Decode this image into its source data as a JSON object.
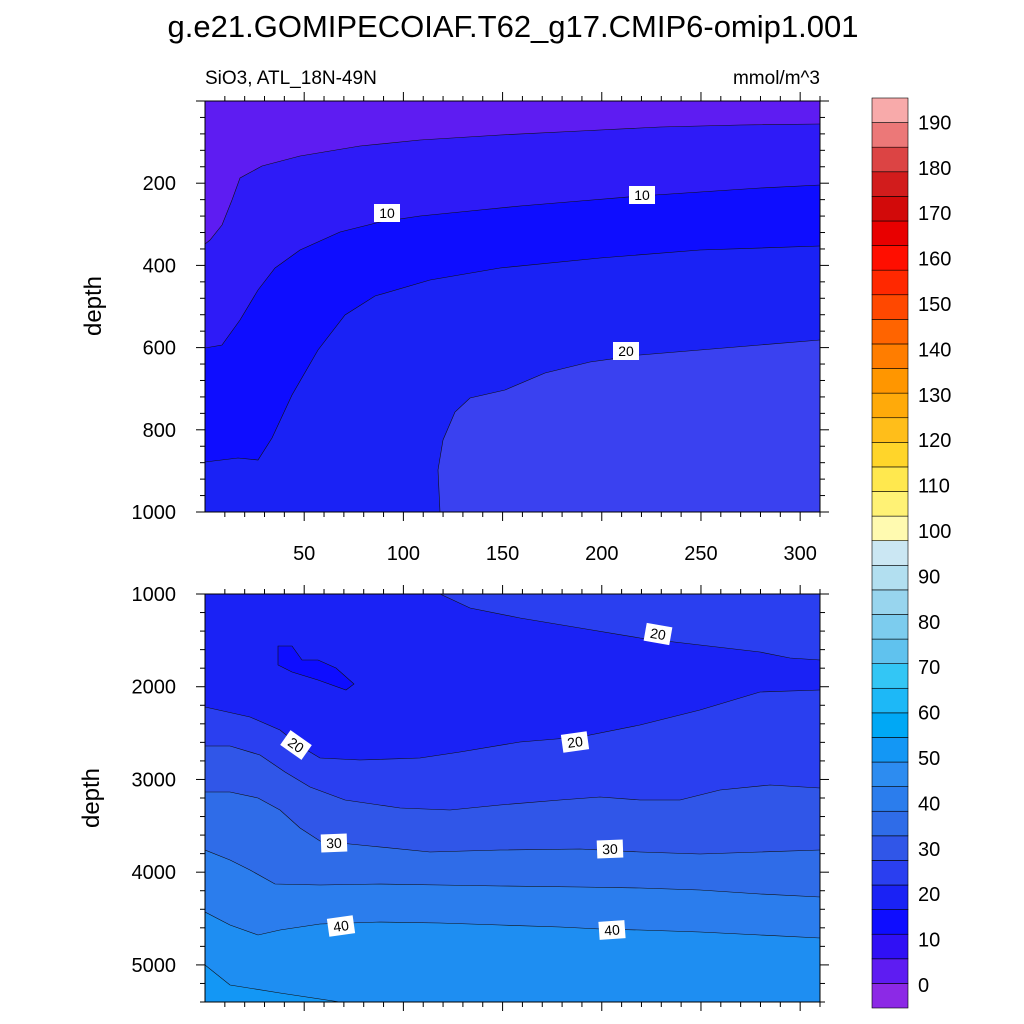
{
  "title": "g.e21.GOMIPECOIAF.T62_g17.CMIP6-omip1.001",
  "subtitle_left": "SiO3, ATL_18N-49N",
  "subtitle_right": "mmol/m^3",
  "chart_data": [
    {
      "type": "heatmap",
      "panel": "upper",
      "variable": "SiO3",
      "region": "ATL_18N-49N",
      "units": "mmol/m^3",
      "ylabel": "depth",
      "ylim": [
        1000,
        0
      ],
      "xlim": [
        0,
        310
      ],
      "x_ticks": [
        50,
        100,
        150,
        200,
        250,
        300
      ],
      "y_ticks": [
        200,
        400,
        600,
        800,
        1000
      ],
      "contour_labels": [
        "10",
        "10",
        "20"
      ]
    },
    {
      "type": "heatmap",
      "panel": "lower",
      "variable": "SiO3",
      "region": "ATL_18N-49N",
      "units": "mmol/m^3",
      "ylabel": "depth",
      "ylim": [
        5400,
        1000
      ],
      "xlim": [
        0,
        310
      ],
      "y_ticks": [
        1000,
        2000,
        3000,
        4000,
        5000
      ],
      "contour_labels": [
        "20",
        "20",
        "20",
        "30",
        "30",
        "40",
        "40"
      ]
    }
  ],
  "colorbar": {
    "labels": [
      "0",
      "10",
      "20",
      "30",
      "40",
      "50",
      "60",
      "70",
      "80",
      "90",
      "100",
      "110",
      "120",
      "130",
      "140",
      "150",
      "160",
      "170",
      "180",
      "190"
    ],
    "colors": [
      "#8c29e6",
      "#5e1cf2",
      "#3010f5",
      "#0e0dff",
      "#1a22f5",
      "#2a3ff0",
      "#3056e8",
      "#2f6ce8",
      "#2b7ded",
      "#2d8cf0",
      "#1397f5",
      "#00a8f5",
      "#1db8f7",
      "#33c6f5",
      "#60c2ee",
      "#7cccee",
      "#98d5ee",
      "#b2dff0",
      "#cbe7f3",
      "#fffab0",
      "#fff275",
      "#ffe84e",
      "#ffd52a",
      "#ffbe1a",
      "#ffaa0a",
      "#ff9600",
      "#ff7d00",
      "#ff6400",
      "#ff4800",
      "#ff2800",
      "#ff0e00",
      "#e80000",
      "#d20a0a",
      "#d21c1c",
      "#dc4444",
      "#ec7878",
      "#f8aaaa"
    ]
  }
}
